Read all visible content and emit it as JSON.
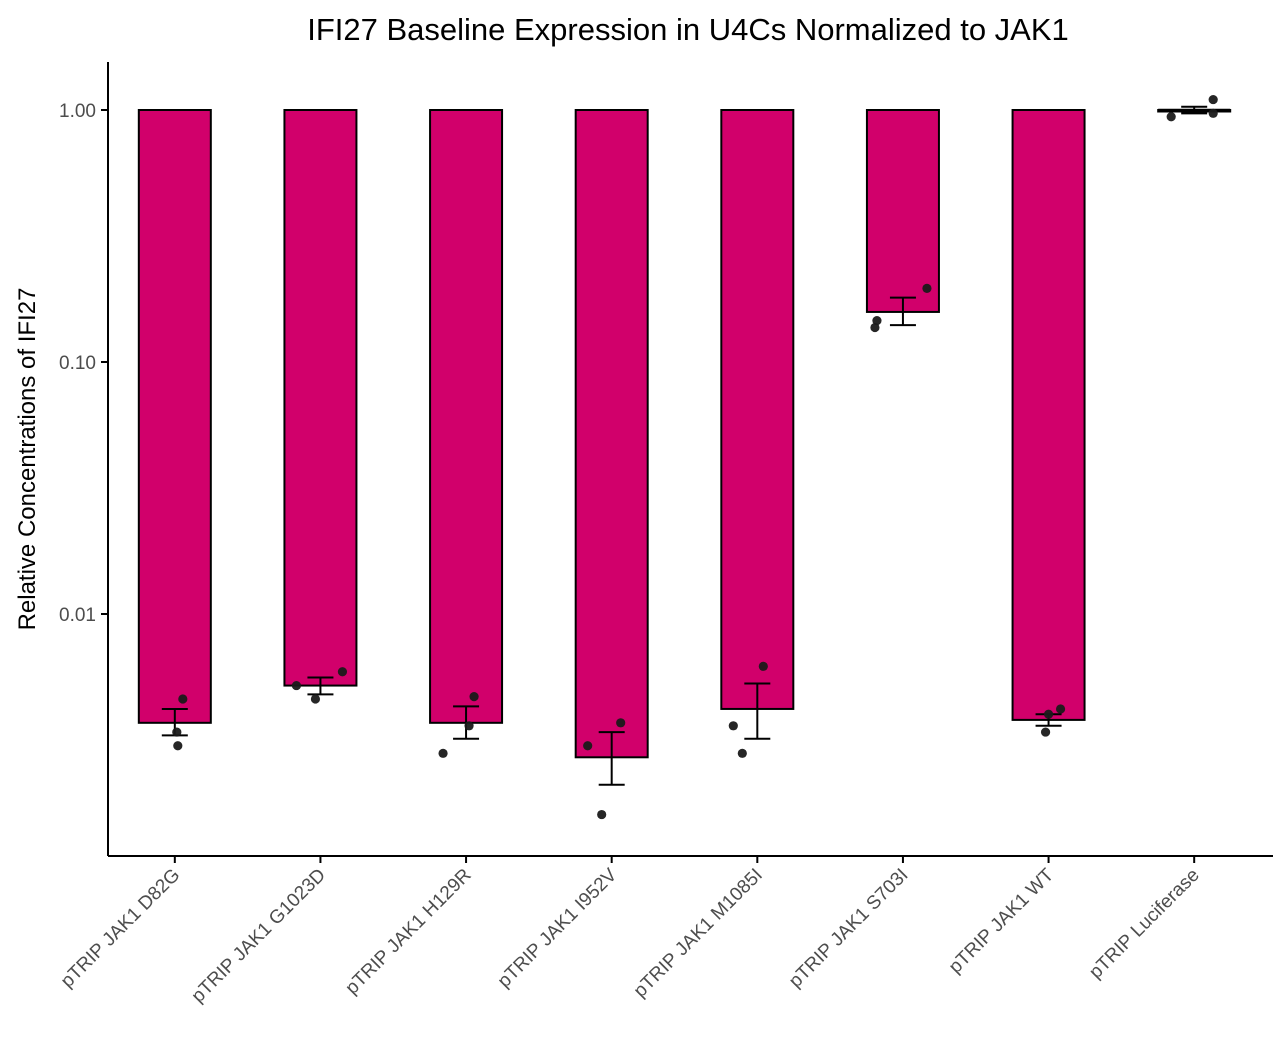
{
  "chart_data": {
    "type": "bar",
    "title": "IFI27 Baseline Expression in U4Cs Normalized to JAK1",
    "xlabel": "",
    "ylabel": "Relative Concentrations of IFI27",
    "y_scale": "log10",
    "ylim": [
      0.0015,
      1.5
    ],
    "y_ticks": [
      1.0,
      0.1,
      0.01
    ],
    "y_tick_labels": [
      "1.00",
      "0.10",
      "0.01"
    ],
    "bar_baseline": 1.0,
    "grid": false,
    "legend": "none",
    "categories": [
      "pTRIP JAK1 D82G",
      "pTRIP JAK1 G1023D",
      "pTRIP JAK1 H129R",
      "pTRIP JAK1 I952V",
      "pTRIP JAK1 M1085I",
      "pTRIP JAK1 S703I",
      "pTRIP JAK1 WT",
      "pTRIP Luciferase"
    ],
    "values": [
      0.0037,
      0.0052,
      0.0037,
      0.0027,
      0.0042,
      0.158,
      0.0038,
      1.0
    ],
    "error_low": [
      0.0033,
      0.0048,
      0.0032,
      0.0021,
      0.0032,
      0.14,
      0.0036,
      0.97
    ],
    "error_high": [
      0.0042,
      0.0056,
      0.0043,
      0.0034,
      0.0053,
      0.18,
      0.004,
      1.03
    ],
    "points": [
      [
        0.0046,
        0.0034,
        0.003
      ],
      [
        0.0052,
        0.0046,
        0.0059
      ],
      [
        0.0028,
        0.0036,
        0.0047
      ],
      [
        0.003,
        0.0037,
        0.0016
      ],
      [
        0.0036,
        0.0028,
        0.0062
      ],
      [
        0.146,
        0.137,
        0.196
      ],
      [
        0.0042,
        0.0034,
        0.004
      ],
      [
        0.94,
        0.97,
        1.1
      ]
    ],
    "colors": {
      "bar_fill": "#D1006B",
      "bar_stroke": "#000000",
      "points": "#1a1a1a",
      "error_bars": "#000000",
      "axis": "#000000"
    }
  }
}
